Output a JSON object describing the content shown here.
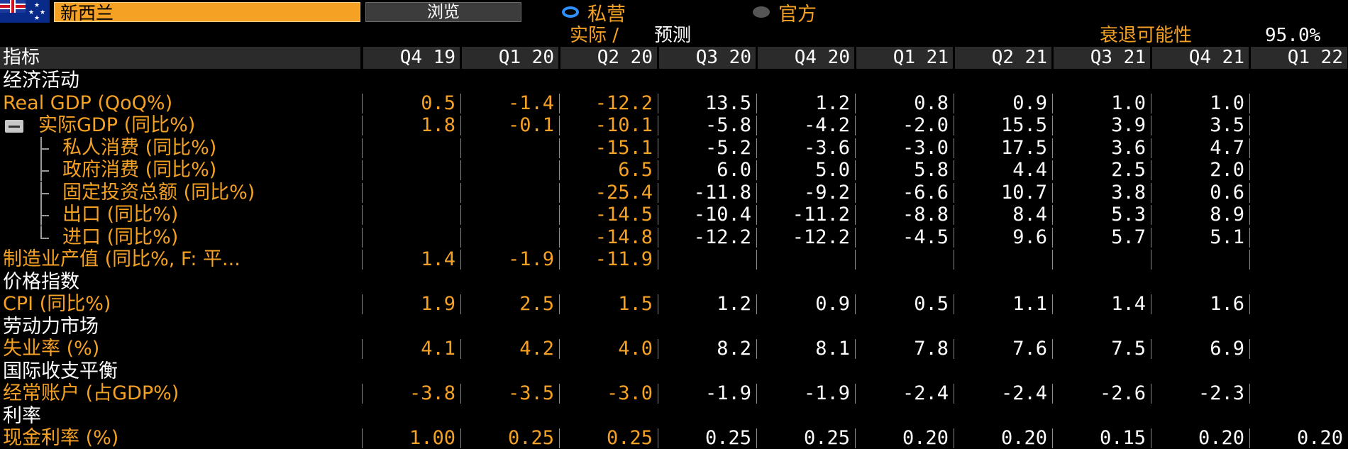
{
  "header": {
    "country": "新西兰",
    "browse_label": "浏览",
    "radio_private": "私营",
    "radio_official": "官方",
    "actual_label": "实际 /",
    "forecast_label": "预测",
    "recession_label": "衰退可能性",
    "recession_value": "95.0%"
  },
  "colors": {
    "accent": "#f5a123",
    "header_bg": "#2b2b2b",
    "radio_selected": "#2e8fff",
    "background": "#000000"
  },
  "table": {
    "label_header": "指标",
    "columns": [
      "Q4 19",
      "Q1 20",
      "Q2 20",
      "Q3 20",
      "Q4 20",
      "Q1 21",
      "Q2 21",
      "Q3 21",
      "Q4 21",
      "Q1 22"
    ],
    "actual_columns": 3,
    "rows": [
      {
        "type": "section",
        "label": "经济活动"
      },
      {
        "type": "data",
        "label": "Real GDP (QoQ%)",
        "values": [
          "0.5",
          "-1.4",
          "-12.2",
          "13.5",
          "1.2",
          "0.8",
          "0.9",
          "1.0",
          "1.0",
          ""
        ]
      },
      {
        "type": "data",
        "label": "实际GDP (同比%)",
        "collapsible": true,
        "values": [
          "1.8",
          "-0.1",
          "-10.1",
          "-5.8",
          "-4.2",
          "-2.0",
          "15.5",
          "3.9",
          "3.5",
          ""
        ]
      },
      {
        "type": "data",
        "label": "私人消费 (同比%)",
        "child": true,
        "values": [
          "",
          "",
          "-15.1",
          "-5.2",
          "-3.6",
          "-3.0",
          "17.5",
          "3.6",
          "4.7",
          ""
        ]
      },
      {
        "type": "data",
        "label": "政府消费 (同比%)",
        "child": true,
        "values": [
          "",
          "",
          "6.5",
          "6.0",
          "5.0",
          "5.8",
          "4.4",
          "2.5",
          "2.0",
          ""
        ]
      },
      {
        "type": "data",
        "label": "固定投资总额 (同比%)",
        "child": true,
        "values": [
          "",
          "",
          "-25.4",
          "-11.8",
          "-9.2",
          "-6.6",
          "10.7",
          "3.8",
          "0.6",
          ""
        ]
      },
      {
        "type": "data",
        "label": "出口 (同比%)",
        "child": true,
        "values": [
          "",
          "",
          "-14.5",
          "-10.4",
          "-11.2",
          "-8.8",
          "8.4",
          "5.3",
          "8.9",
          ""
        ]
      },
      {
        "type": "data",
        "label": "进口 (同比%)",
        "child": true,
        "last_child": true,
        "values": [
          "",
          "",
          "-14.8",
          "-12.2",
          "-12.2",
          "-4.5",
          "9.6",
          "5.7",
          "5.1",
          ""
        ]
      },
      {
        "type": "data",
        "label": "制造业产值 (同比%, F: 平...",
        "values": [
          "1.4",
          "-1.9",
          "-11.9",
          "",
          "",
          "",
          "",
          "",
          "",
          ""
        ]
      },
      {
        "type": "section",
        "label": "价格指数"
      },
      {
        "type": "data",
        "label": "CPI (同比%)",
        "values": [
          "1.9",
          "2.5",
          "1.5",
          "1.2",
          "0.9",
          "0.5",
          "1.1",
          "1.4",
          "1.6",
          ""
        ]
      },
      {
        "type": "section",
        "label": "劳动力市场"
      },
      {
        "type": "data",
        "label": "失业率 (%)",
        "values": [
          "4.1",
          "4.2",
          "4.0",
          "8.2",
          "8.1",
          "7.8",
          "7.6",
          "7.5",
          "6.9",
          ""
        ]
      },
      {
        "type": "section",
        "label": "国际收支平衡"
      },
      {
        "type": "data",
        "label": "经常账户 (占GDP%)",
        "values": [
          "-3.8",
          "-3.5",
          "-3.0",
          "-1.9",
          "-1.9",
          "-2.4",
          "-2.4",
          "-2.6",
          "-2.3",
          ""
        ]
      },
      {
        "type": "section",
        "label": "利率"
      },
      {
        "type": "data",
        "label": "现金利率 (%)",
        "values": [
          "1.00",
          "0.25",
          "0.25",
          "0.25",
          "0.25",
          "0.20",
          "0.20",
          "0.15",
          "0.20",
          "0.20"
        ]
      }
    ]
  }
}
